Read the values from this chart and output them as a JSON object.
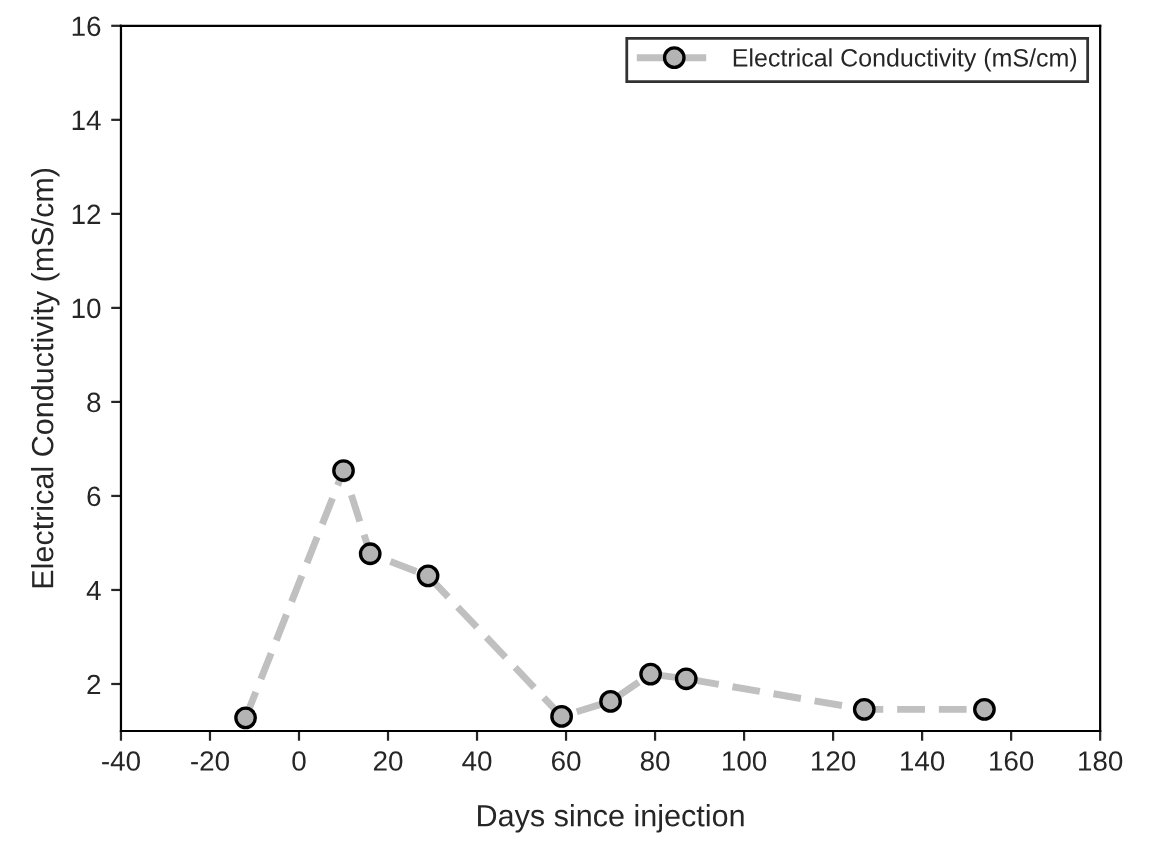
{
  "chart_data": {
    "type": "line",
    "xlabel": "Days since injection",
    "ylabel": "Electrical Conductivity (mS/cm)",
    "x": [
      -12,
      10,
      16,
      29,
      59,
      70,
      79,
      87,
      127,
      154
    ],
    "series": [
      {
        "name": "Electrical Conductivity (mS/cm)",
        "color": "#c0c0c0",
        "values": [
          1.28,
          6.54,
          4.77,
          4.3,
          1.31,
          1.63,
          2.21,
          2.11,
          1.46,
          1.46
        ]
      }
    ],
    "xlim": [
      -40,
      180
    ],
    "xticks": [
      -40,
      -20,
      0,
      20,
      40,
      60,
      80,
      100,
      120,
      140,
      160,
      180
    ],
    "ylim": [
      1,
      16
    ],
    "yticks": [
      2,
      4,
      6,
      8,
      10,
      12,
      14,
      16
    ],
    "marker": "circle",
    "line_style": "dashed",
    "legend": "top right",
    "grid": false
  }
}
